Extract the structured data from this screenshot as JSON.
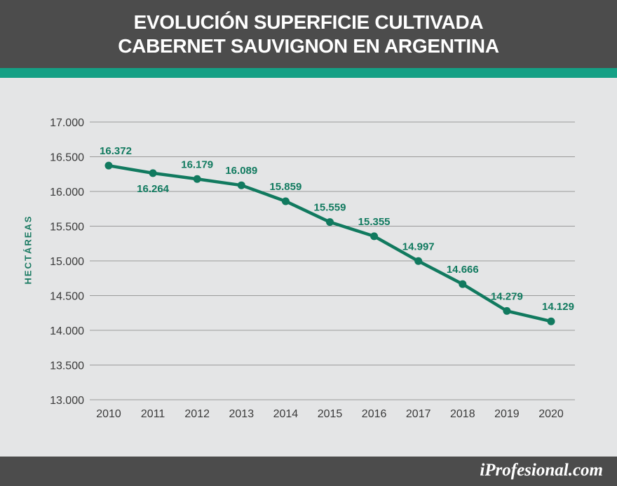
{
  "title": {
    "line1": "EVOLUCIÓN SUPERFICIE CULTIVADA",
    "line2": "CABERNET SAUVIGNON EN ARGENTINA"
  },
  "brand": "iProfesional.com",
  "colors": {
    "header": "#4c4c4c",
    "accent": "#14a085",
    "background": "#e4e5e6",
    "line": "#117a5f",
    "grid": "#9a9a9a"
  },
  "chart_data": {
    "type": "line",
    "title": "EVOLUCIÓN SUPERFICIE CULTIVADA CABERNET SAUVIGNON EN ARGENTINA",
    "xlabel": "",
    "ylabel": "HECTÁREAS",
    "x": [
      2010,
      2011,
      2012,
      2013,
      2014,
      2015,
      2016,
      2017,
      2018,
      2019,
      2020
    ],
    "values": [
      16372,
      16264,
      16179,
      16089,
      15859,
      15559,
      15355,
      14997,
      14666,
      14279,
      14129
    ],
    "value_labels": [
      "16.372",
      "16.264",
      "16.179",
      "16.089",
      "15.859",
      "15.559",
      "15.355",
      "14.997",
      "14.666",
      "14.279",
      "14.129"
    ],
    "ylim": [
      13000,
      17000
    ],
    "yticks": [
      13000,
      13500,
      14000,
      14500,
      15000,
      15500,
      16000,
      16500,
      17000
    ],
    "ytick_labels": [
      "13.000",
      "13.500",
      "14.000",
      "14.500",
      "15.000",
      "15.500",
      "16.000",
      "16.500",
      "17.000"
    ],
    "grid": "horizontal",
    "legend": "none"
  }
}
